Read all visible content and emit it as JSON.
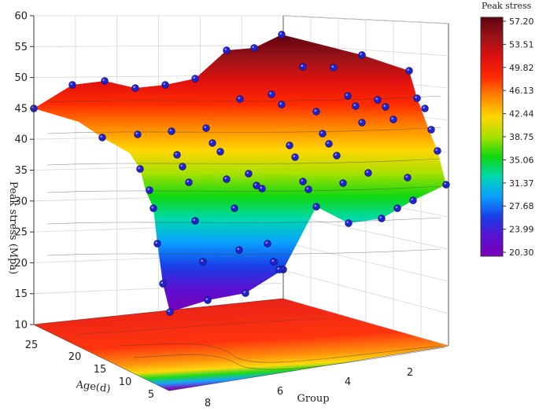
{
  "chart_data": {
    "type": "surface3d",
    "ylabel": "Peak stress (Mpa)",
    "xlabel": "Age(d)",
    "zlabel": "Group",
    "y_ticks": [
      10,
      15,
      20,
      25,
      30,
      35,
      40,
      45,
      50,
      55,
      60
    ],
    "ylim": [
      10,
      60
    ],
    "age_ticks": [
      25,
      20,
      15,
      10,
      5
    ],
    "group_ticks": [
      8,
      6,
      4,
      2
    ],
    "colorbar": {
      "title": "Peak stress",
      "ticks": [
        "57.20",
        "53.51",
        "49.82",
        "46.13",
        "42.44",
        "38.75",
        "35.06",
        "31.37",
        "27.68",
        "23.99",
        "20.30"
      ],
      "range": [
        20.3,
        57.2
      ],
      "colors": [
        "#600010",
        "#9a1418",
        "#e01010",
        "#ff2a00",
        "#ff8800",
        "#ffd600",
        "#a8e000",
        "#10d810",
        "#00d8b0",
        "#0aa0ff",
        "#1840e8",
        "#5a10d0",
        "#7a00b8"
      ]
    },
    "grid": true,
    "points_visible": 68
  }
}
